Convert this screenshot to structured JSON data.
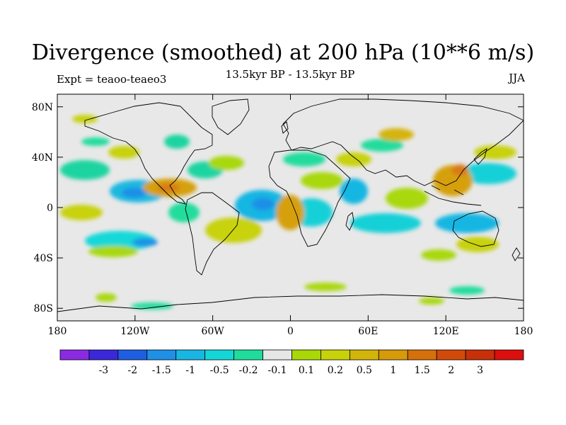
{
  "title": "Divergence (smoothed) at 200 hPa (10**6 m/s)",
  "subtitle": "13.5kyr BP - 13.5kyr BP",
  "left_label": "Expt = teaoo-teaeo3",
  "right_label": "JJA",
  "map": {
    "projection": "cylindrical equidistant",
    "lon_range": [
      -180,
      180
    ],
    "lat_range": [
      -90,
      90
    ],
    "background_color": "#e8e8e8",
    "lat_ticks": [
      {
        "value": 80,
        "label": "80N"
      },
      {
        "value": 40,
        "label": "40N"
      },
      {
        "value": 0,
        "label": "0"
      },
      {
        "value": -40,
        "label": "40S"
      },
      {
        "value": -80,
        "label": "80S"
      }
    ],
    "lon_ticks": [
      {
        "value": -180,
        "label": "180"
      },
      {
        "value": -120,
        "label": "120W"
      },
      {
        "value": -60,
        "label": "60W"
      },
      {
        "value": 0,
        "label": "0"
      },
      {
        "value": 60,
        "label": "60E"
      },
      {
        "value": 120,
        "label": "120E"
      },
      {
        "value": 180,
        "label": "180"
      }
    ]
  },
  "colorbar": {
    "colors": [
      "#8a2be2",
      "#3b28d9",
      "#1e5ee0",
      "#1e90e6",
      "#19b6e3",
      "#14d6d6",
      "#20dc9c",
      "#e6e6e6",
      "#a8d808",
      "#c8d20a",
      "#d2b40a",
      "#d69a0a",
      "#d6700a",
      "#d24a0a",
      "#c8300a",
      "#dc0f0f"
    ],
    "labels": [
      "-3",
      "-2",
      "-1.5",
      "-1",
      "-0.5",
      "-0.2",
      "-0.1",
      "0.1",
      "0.2",
      "0.5",
      "1",
      "1.5",
      "2",
      "3"
    ]
  }
}
